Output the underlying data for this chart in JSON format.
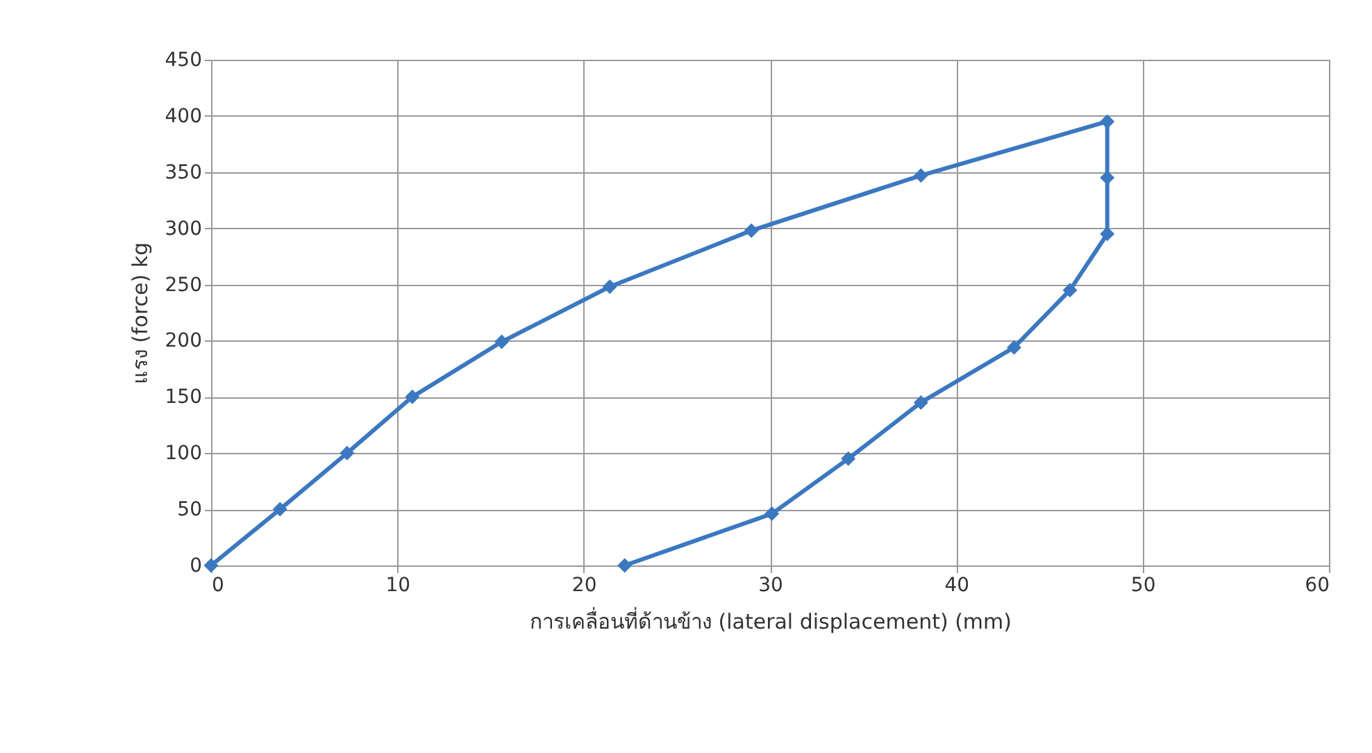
{
  "chart_data": {
    "type": "line",
    "xlabel": "การเคลื่อนที่ด้านข้าง (lateral displacement) (mm)",
    "ylabel": "แรง (force) kg",
    "series": [
      {
        "color": "#3b78c0",
        "x": [
          0,
          3.7,
          7.3,
          10.8,
          15.6,
          21.4,
          29.0,
          38.1,
          48.1,
          48.1,
          48.1,
          46.1,
          43.1,
          38.1,
          34.2,
          30.1,
          22.2
        ],
        "values": [
          0,
          50,
          100,
          150,
          199,
          248,
          298,
          347,
          395,
          345,
          295,
          245,
          194,
          145,
          95,
          46,
          0
        ]
      }
    ],
    "xlim": [
      0,
      60
    ],
    "xticks": [
      0,
      10,
      20,
      30,
      40,
      50,
      60
    ],
    "ylim": [
      0,
      450
    ],
    "yticks": [
      0,
      50,
      100,
      150,
      200,
      250,
      300,
      350,
      400,
      450
    ],
    "grid": true,
    "marker": "diamond",
    "line_style": "solid"
  }
}
